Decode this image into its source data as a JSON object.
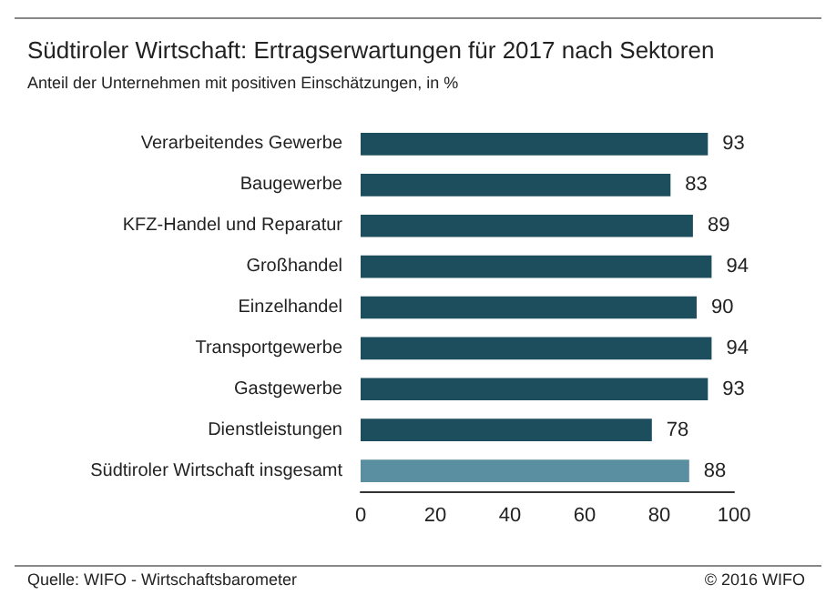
{
  "chart_data": {
    "type": "bar",
    "orientation": "horizontal",
    "title": "Südtiroler Wirtschaft: Ertragserwartungen für 2017 nach Sektoren",
    "subtitle": "Anteil der Unternehmen mit positiven Einschätzungen, in %",
    "categories": [
      "Verarbeitendes Gewerbe",
      "Baugewerbe",
      "KFZ-Handel und Reparatur",
      "Großhandel",
      "Einzelhandel",
      "Transportgewerbe",
      "Gastgewerbe",
      "Dienstleistungen",
      "Südtiroler Wirtschaft insgesamt"
    ],
    "values": [
      93,
      83,
      89,
      94,
      90,
      94,
      93,
      78,
      88
    ],
    "colors": [
      "#1d4e5e",
      "#1d4e5e",
      "#1d4e5e",
      "#1d4e5e",
      "#1d4e5e",
      "#1d4e5e",
      "#1d4e5e",
      "#1d4e5e",
      "#5a8fa2"
    ],
    "xlim": [
      0,
      100
    ],
    "xticks": [
      0,
      20,
      40,
      60,
      80,
      100
    ],
    "data_labels": true,
    "annotations": [
      "Quelle: WIFO - Wirtschaftsbarometer",
      "© 2016 WIFO"
    ]
  }
}
